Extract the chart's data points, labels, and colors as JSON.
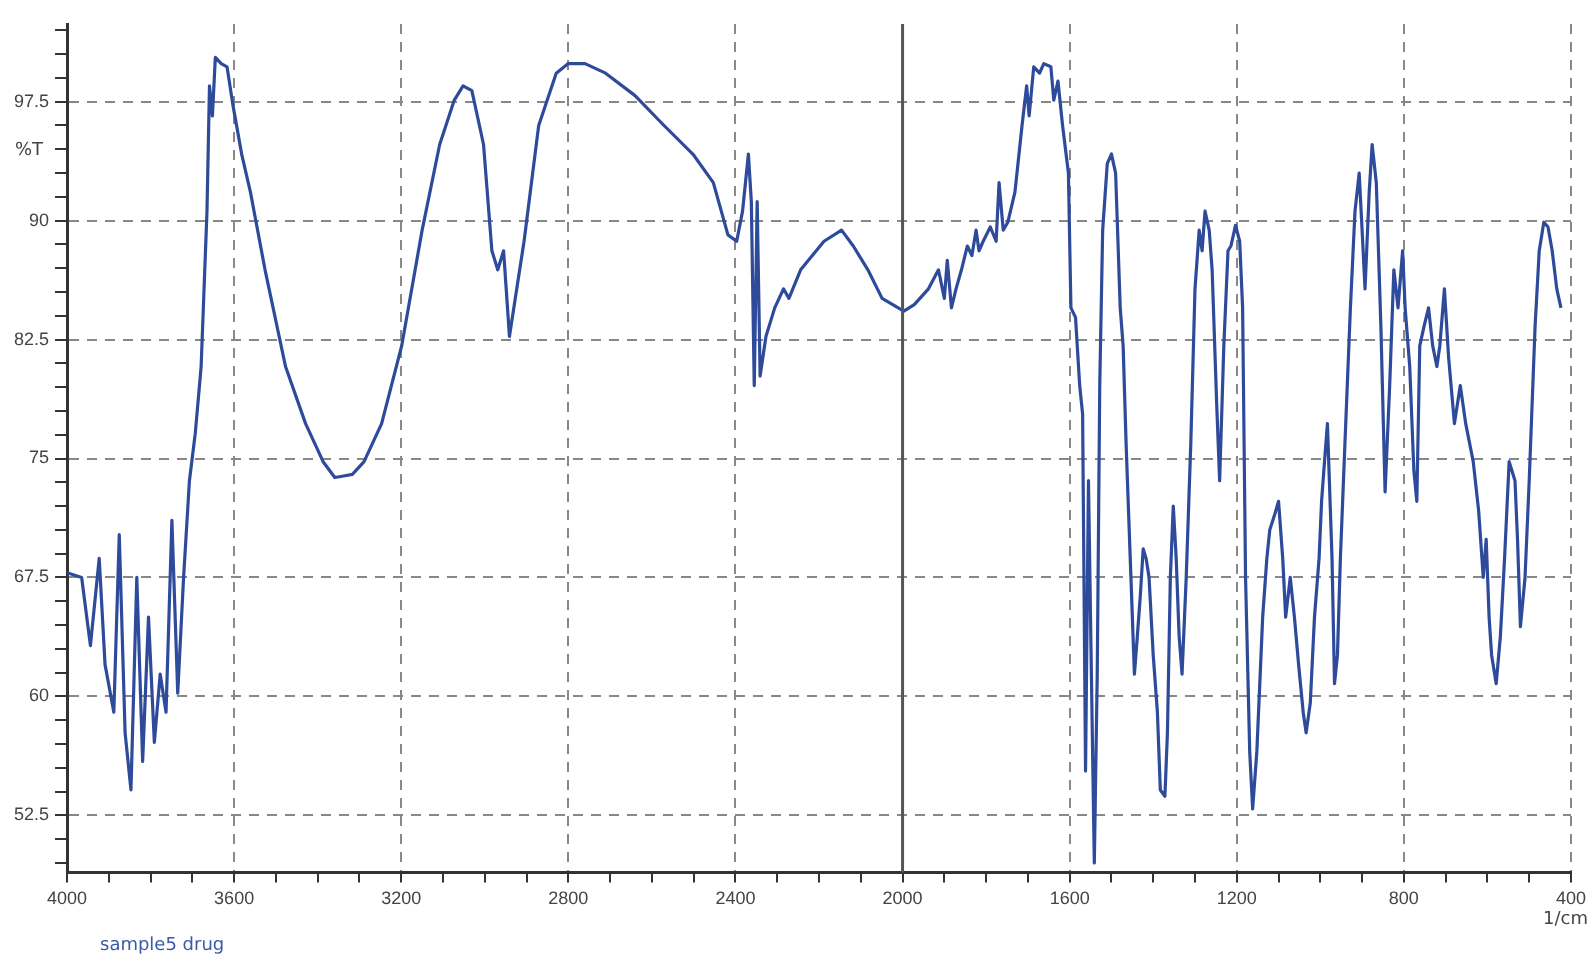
{
  "chart_data": {
    "type": "line",
    "xlabel": "1/cm",
    "ylabel": "%T",
    "annotations": [
      "sample5 drug"
    ],
    "xlim": [
      4000,
      400
    ],
    "ylim": [
      48.9,
      102.4
    ],
    "xticks": [
      4000,
      {
        "value": 3900,
        "label": null
      },
      {
        "value": 3800,
        "label": null
      },
      {
        "value": 3700,
        "label": null
      },
      3600,
      {
        "value": 3500,
        "label": null
      },
      {
        "value": 3400,
        "label": null
      },
      {
        "value": 3300,
        "label": null
      },
      3200,
      {
        "value": 3100,
        "label": null
      },
      {
        "value": 3000,
        "label": null
      },
      {
        "value": 2900,
        "label": null
      },
      2800,
      {
        "value": 2700,
        "label": null
      },
      {
        "value": 2600,
        "label": null
      },
      {
        "value": 2500,
        "label": null
      },
      2400,
      {
        "value": 2300,
        "label": null
      },
      {
        "value": 2200,
        "label": null
      },
      {
        "value": 2100,
        "label": null
      },
      2000,
      {
        "value": 1900,
        "label": null
      },
      {
        "value": 1800,
        "label": null
      },
      {
        "value": 1700,
        "label": null
      },
      1600,
      {
        "value": 1500,
        "label": null
      },
      {
        "value": 1400,
        "label": null
      },
      {
        "value": 1300,
        "label": null
      },
      1200,
      {
        "value": 1100,
        "label": null
      },
      {
        "value": 1000,
        "label": null
      },
      {
        "value": 900,
        "label": null
      },
      800,
      {
        "value": 700,
        "label": null
      },
      {
        "value": 600,
        "label": null
      },
      {
        "value": 500,
        "label": null
      },
      400
    ],
    "yticks": [
      {
        "value": 49.5,
        "label": null
      },
      {
        "value": 51,
        "label": null
      },
      52.5,
      {
        "value": 54,
        "label": null
      },
      {
        "value": 55.5,
        "label": null
      },
      {
        "value": 57,
        "label": null
      },
      {
        "value": 58.5,
        "label": null
      },
      60,
      {
        "value": 61.5,
        "label": null
      },
      {
        "value": 63,
        "label": null
      },
      {
        "value": 64.5,
        "label": null
      },
      {
        "value": 66,
        "label": null
      },
      67.5,
      {
        "value": 69,
        "label": null
      },
      {
        "value": 70.5,
        "label": null
      },
      {
        "value": 72,
        "label": null
      },
      {
        "value": 73.5,
        "label": null
      },
      75,
      {
        "value": 76.5,
        "label": null
      },
      {
        "value": 78,
        "label": null
      },
      {
        "value": 79.5,
        "label": null
      },
      {
        "value": 81,
        "label": null
      },
      82.5,
      {
        "value": 84,
        "label": null
      },
      {
        "value": 85.5,
        "label": null
      },
      {
        "value": 87,
        "label": null
      },
      {
        "value": 88.5,
        "label": null
      },
      90,
      {
        "value": 91.5,
        "label": null
      },
      {
        "value": 93,
        "label": null
      },
      {
        "value": 94.5,
        "label": null
      },
      {
        "value": 96,
        "label": null
      },
      97.5,
      {
        "value": 99,
        "label": null
      },
      {
        "value": 100.5,
        "label": null
      },
      {
        "value": 102,
        "label": null
      }
    ],
    "grid": true,
    "legend": false,
    "marker": "none",
    "line_style": "solid",
    "ref_lines": [
      {
        "axis": "x",
        "value": 2000,
        "color": "#555555",
        "line_style": "solid"
      }
    ],
    "x": [
      4000,
      3965,
      3944,
      3923,
      3909,
      3888,
      3875,
      3861,
      3847,
      3833,
      3819,
      3805,
      3791,
      3777,
      3763,
      3749,
      3735,
      3721,
      3707,
      3693,
      3679,
      3672,
      3665,
      3659,
      3652,
      3645,
      3631,
      3617,
      3603,
      3582,
      3561,
      3526,
      3477,
      3429,
      3387,
      3359,
      3338,
      3317,
      3289,
      3247,
      3199,
      3150,
      3108,
      3073,
      3052,
      3031,
      3003,
      2983,
      2969,
      2955,
      2941,
      2927,
      2906,
      2871,
      2829,
      2801,
      2760,
      2711,
      2641,
      2571,
      2502,
      2453,
      2418,
      2397,
      2383,
      2369,
      2362,
      2355,
      2348,
      2341,
      2327,
      2306,
      2285,
      2272,
      2244,
      2188,
      2146,
      2118,
      2083,
      2049,
      1997,
      1972,
      1938,
      1914,
      1900,
      1893,
      1883,
      1872,
      1859,
      1845,
      1834,
      1824,
      1817,
      1807,
      1790,
      1776,
      1769,
      1759,
      1748,
      1731,
      1714,
      1703,
      1697,
      1686,
      1672,
      1662,
      1645,
      1638,
      1628,
      1617,
      1603,
      1597,
      1586,
      1576,
      1569,
      1562,
      1555,
      1548,
      1541,
      1534,
      1528,
      1521,
      1510,
      1500,
      1490,
      1479,
      1472,
      1465,
      1455,
      1445,
      1438,
      1431,
      1424,
      1417,
      1410,
      1400,
      1390,
      1383,
      1372,
      1366,
      1359,
      1352,
      1345,
      1338,
      1331,
      1321,
      1310,
      1300,
      1290,
      1283,
      1276,
      1266,
      1259,
      1248,
      1241,
      1231,
      1221,
      1214,
      1203,
      1193,
      1186,
      1179,
      1169,
      1162,
      1152,
      1138,
      1128,
      1121,
      1110,
      1100,
      1090,
      1083,
      1072,
      1062,
      1052,
      1041,
      1034,
      1024,
      1014,
      1003,
      997,
      990,
      983,
      972,
      966,
      959,
      952,
      941,
      928,
      917,
      907,
      900,
      893,
      883,
      876,
      866,
      855,
      845,
      834,
      824,
      814,
      803,
      797,
      786,
      776,
      769,
      762,
      752,
      741,
      731,
      721,
      714,
      703,
      693,
      679,
      665,
      652,
      634,
      621,
      610,
      603,
      596,
      590,
      579,
      569,
      559,
      548,
      534,
      528,
      521,
      510,
      500,
      486,
      476,
      465,
      455,
      445,
      434,
      424
    ],
    "series": [
      {
        "color": "#2e4a9a",
        "values": [
          67.8,
          67.5,
          63.2,
          68.7,
          62.0,
          59.0,
          70.2,
          57.7,
          54.1,
          67.5,
          55.9,
          65.0,
          57.1,
          61.4,
          59.0,
          71.1,
          60.2,
          67.5,
          73.6,
          76.6,
          80.8,
          85.7,
          90.6,
          98.5,
          96.6,
          100.3,
          99.9,
          99.7,
          97.3,
          94.2,
          91.8,
          86.9,
          80.8,
          77.2,
          74.8,
          73.8,
          73.9,
          74.0,
          74.8,
          77.2,
          82.1,
          89.4,
          94.8,
          97.6,
          98.5,
          98.2,
          94.8,
          88.1,
          86.9,
          88.1,
          82.7,
          85.1,
          88.7,
          96.0,
          99.3,
          99.9,
          99.9,
          99.3,
          97.9,
          96.0,
          94.2,
          92.4,
          89.1,
          88.7,
          90.6,
          94.2,
          91.2,
          79.6,
          91.2,
          80.2,
          82.7,
          84.5,
          85.7,
          85.1,
          86.9,
          88.7,
          89.4,
          88.4,
          86.9,
          85.1,
          84.3,
          84.7,
          85.7,
          86.9,
          85.1,
          87.5,
          84.5,
          85.7,
          86.9,
          88.4,
          87.8,
          89.4,
          88.1,
          88.7,
          89.6,
          88.7,
          92.4,
          89.4,
          89.9,
          91.8,
          96.0,
          98.5,
          96.6,
          99.7,
          99.3,
          99.9,
          99.7,
          97.6,
          98.8,
          96.0,
          93.0,
          84.5,
          83.9,
          79.6,
          77.8,
          55.3,
          73.6,
          61.4,
          49.5,
          61.4,
          79.6,
          89.4,
          93.6,
          94.2,
          93.0,
          84.5,
          82.1,
          76.0,
          68.7,
          61.4,
          63.8,
          66.3,
          69.3,
          68.7,
          67.5,
          62.6,
          59.0,
          54.1,
          53.7,
          57.7,
          67.5,
          72.0,
          68.7,
          63.8,
          61.4,
          67.5,
          76.0,
          85.7,
          89.4,
          88.1,
          90.6,
          89.4,
          86.9,
          78.4,
          73.6,
          82.1,
          88.1,
          88.4,
          89.7,
          88.7,
          84.5,
          67.5,
          56.5,
          52.9,
          56.5,
          65.0,
          68.7,
          70.5,
          71.4,
          72.3,
          68.7,
          65.0,
          67.5,
          65.0,
          62.0,
          59.0,
          57.7,
          59.6,
          65.0,
          68.7,
          72.3,
          74.8,
          77.2,
          68.7,
          60.8,
          62.6,
          68.7,
          76.0,
          84.5,
          90.6,
          93.0,
          89.4,
          85.7,
          91.8,
          94.8,
          92.4,
          83.3,
          72.9,
          79.6,
          86.9,
          84.5,
          88.1,
          84.5,
          80.8,
          74.2,
          72.3,
          82.1,
          83.3,
          84.5,
          82.1,
          80.8,
          82.1,
          85.7,
          81.4,
          77.2,
          79.6,
          77.2,
          74.8,
          71.7,
          67.5,
          69.9,
          65.0,
          62.6,
          60.8,
          63.8,
          68.7,
          74.8,
          73.6,
          69.9,
          64.4,
          67.5,
          73.6,
          83.3,
          88.1,
          89.9,
          89.6,
          88.1,
          85.7,
          84.5
        ]
      }
    ]
  }
}
